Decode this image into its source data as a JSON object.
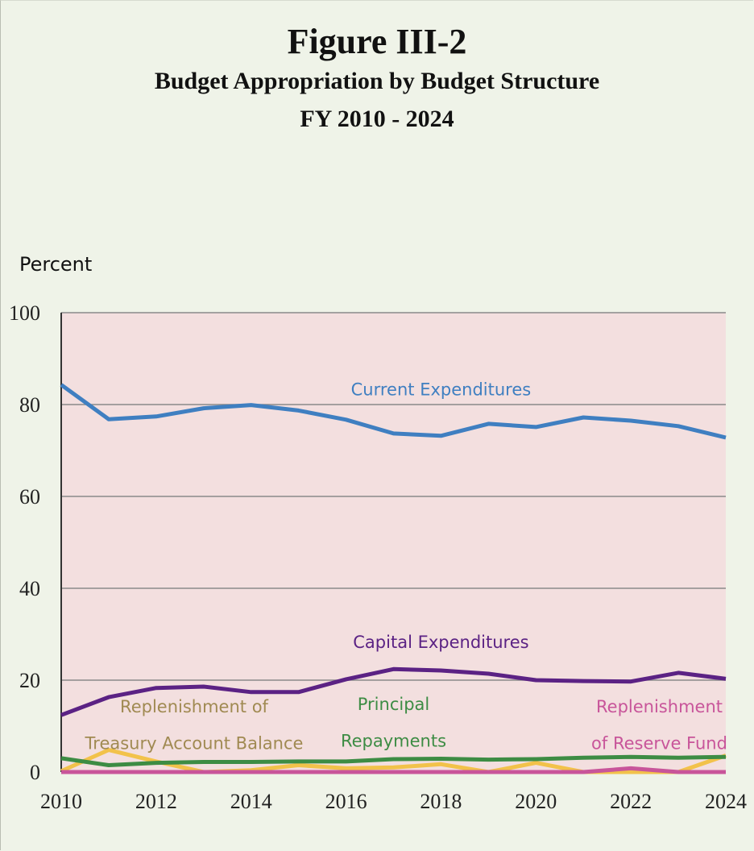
{
  "figure": {
    "number": "Figure III-2",
    "title": "Budget Appropriation by Budget Structure",
    "period": "FY 2010 - 2024"
  },
  "chart_data": {
    "type": "line",
    "ylabel": "Percent",
    "xlabel": "",
    "ylim": [
      0,
      100
    ],
    "xlim": [
      2010,
      2024
    ],
    "y_ticks": [
      0,
      20,
      40,
      60,
      80,
      100
    ],
    "x_ticks": [
      2010,
      2012,
      2014,
      2016,
      2018,
      2020,
      2022,
      2024
    ],
    "grid": "horizontal",
    "plot_background": "#f3dfdf",
    "x": [
      2010,
      2011,
      2012,
      2013,
      2014,
      2015,
      2016,
      2017,
      2018,
      2019,
      2020,
      2021,
      2022,
      2023,
      2024
    ],
    "series": [
      {
        "name": "Current Expenditures",
        "label_lines": [
          "Current Expenditures"
        ],
        "color": "#3f7fc1",
        "values": [
          84.3,
          76.8,
          77.4,
          79.2,
          79.9,
          78.7,
          76.7,
          73.7,
          73.2,
          75.8,
          75.1,
          77.2,
          76.5,
          75.3,
          72.8
        ]
      },
      {
        "name": "Capital Expenditures",
        "label_lines": [
          "Capital Expenditures"
        ],
        "color": "#5b2284",
        "values": [
          12.4,
          16.3,
          18.3,
          18.6,
          17.4,
          17.4,
          20.2,
          22.4,
          22.1,
          21.4,
          20.0,
          19.8,
          19.7,
          21.6,
          20.3
        ]
      },
      {
        "name": "Principal Repayments",
        "label_lines": [
          "Principal",
          "Repayments"
        ],
        "color": "#3d8c44",
        "values": [
          3.0,
          1.5,
          2.0,
          2.2,
          2.2,
          2.3,
          2.3,
          2.8,
          2.9,
          2.7,
          2.8,
          3.1,
          3.3,
          3.1,
          3.3
        ]
      },
      {
        "name": "Replenishment of Treasury Account Balance",
        "label_lines": [
          "Replenishment of",
          "Treasury Account Balance"
        ],
        "color": "#f2c24a",
        "label_color": "#a08a52",
        "values": [
          0.2,
          4.8,
          2.3,
          0.0,
          0.4,
          1.5,
          0.8,
          1.0,
          1.7,
          0.0,
          2.0,
          0.0,
          0.0,
          0.0,
          3.6
        ]
      },
      {
        "name": "Replenishment of Reserve Fund",
        "label_lines": [
          "Replenishment",
          "of Reserve Fund"
        ],
        "color": "#c8559a",
        "values": [
          0.0,
          0.0,
          0.0,
          0.0,
          0.0,
          0.0,
          0.0,
          0.0,
          0.0,
          0.0,
          0.0,
          0.0,
          0.8,
          0.0,
          0.0
        ]
      }
    ]
  }
}
